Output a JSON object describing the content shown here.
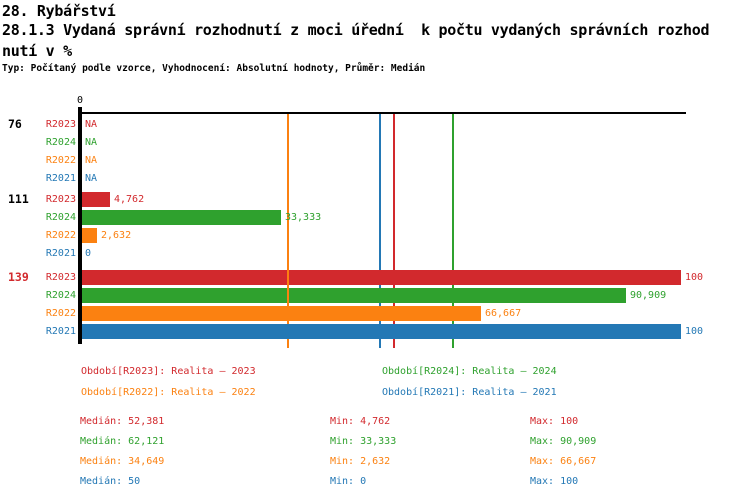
{
  "header": {
    "line1": "28. Rybářství",
    "line2": "28.1.3 Vydaná správní rozhodnutí z moci úřední  k počtu vydaných správních rozhod",
    "line3": "nutí v %",
    "meta": "Typ: Počítaný podle vzorce, Vyhodnocení: Absolutní hodnoty, Průměr: Medián"
  },
  "colors": {
    "R2023": "#d2292d",
    "R2024": "#2fa12e",
    "R2022": "#fb8111",
    "R2021": "#2378b5",
    "axis": "#000000",
    "group_label_default": "#000000"
  },
  "chart_data": {
    "type": "bar",
    "orientation": "horizontal",
    "value_axis": {
      "min": 0,
      "max": 100,
      "zero_label": "0",
      "unit": "%"
    },
    "series": [
      {
        "id": "R2023",
        "name": "Realita – 2023",
        "median": 52.381,
        "min": 4.762,
        "max": 100
      },
      {
        "id": "R2024",
        "name": "Realita – 2024",
        "median": 62.121,
        "min": 33.333,
        "max": 90.909
      },
      {
        "id": "R2022",
        "name": "Realita – 2022",
        "median": 34.649,
        "min": 2.632,
        "max": 66.667
      },
      {
        "id": "R2021",
        "name": "Realita – 2021",
        "median": 50,
        "min": 0,
        "max": 100
      }
    ],
    "groups": [
      {
        "label": "76",
        "label_color": "#000000",
        "rows": [
          {
            "series": "R2023",
            "value": null,
            "display": "NA"
          },
          {
            "series": "R2024",
            "value": null,
            "display": "NA"
          },
          {
            "series": "R2022",
            "value": null,
            "display": "NA"
          },
          {
            "series": "R2021",
            "value": null,
            "display": "NA"
          }
        ]
      },
      {
        "label": "111",
        "label_color": "#000000",
        "rows": [
          {
            "series": "R2023",
            "value": 4.762,
            "display": "4,762"
          },
          {
            "series": "R2024",
            "value": 33.333,
            "display": "33,333"
          },
          {
            "series": "R2022",
            "value": 2.632,
            "display": "2,632"
          },
          {
            "series": "R2021",
            "value": 0,
            "display": "0"
          }
        ]
      },
      {
        "label": "139",
        "label_color": "#d2292d",
        "rows": [
          {
            "series": "R2023",
            "value": 100,
            "display": "100"
          },
          {
            "series": "R2024",
            "value": 90.909,
            "display": "90,909"
          },
          {
            "series": "R2022",
            "value": 66.667,
            "display": "66,667"
          },
          {
            "series": "R2021",
            "value": 100,
            "display": "100"
          }
        ]
      }
    ]
  },
  "legend": {
    "items": [
      {
        "series": "R2023",
        "label": "Období[R2023]: Realita – 2023"
      },
      {
        "series": "R2024",
        "label": "Období[R2024]: Realita – 2024"
      },
      {
        "series": "R2022",
        "label": "Období[R2022]: Realita – 2022"
      },
      {
        "series": "R2021",
        "label": "Období[R2021]: Realita – 2021"
      }
    ]
  },
  "stats": {
    "median_prefix": "Medián",
    "min_prefix": "Min",
    "max_prefix": "Max",
    "rows": [
      {
        "series": "R2023",
        "median": "52,381",
        "min": "4,762",
        "max": "100"
      },
      {
        "series": "R2024",
        "median": "62,121",
        "min": "33,333",
        "max": "90,909"
      },
      {
        "series": "R2022",
        "median": "34,649",
        "min": "2,632",
        "max": "66,667"
      },
      {
        "series": "R2021",
        "median": "50",
        "min": "0",
        "max": "100"
      }
    ]
  }
}
